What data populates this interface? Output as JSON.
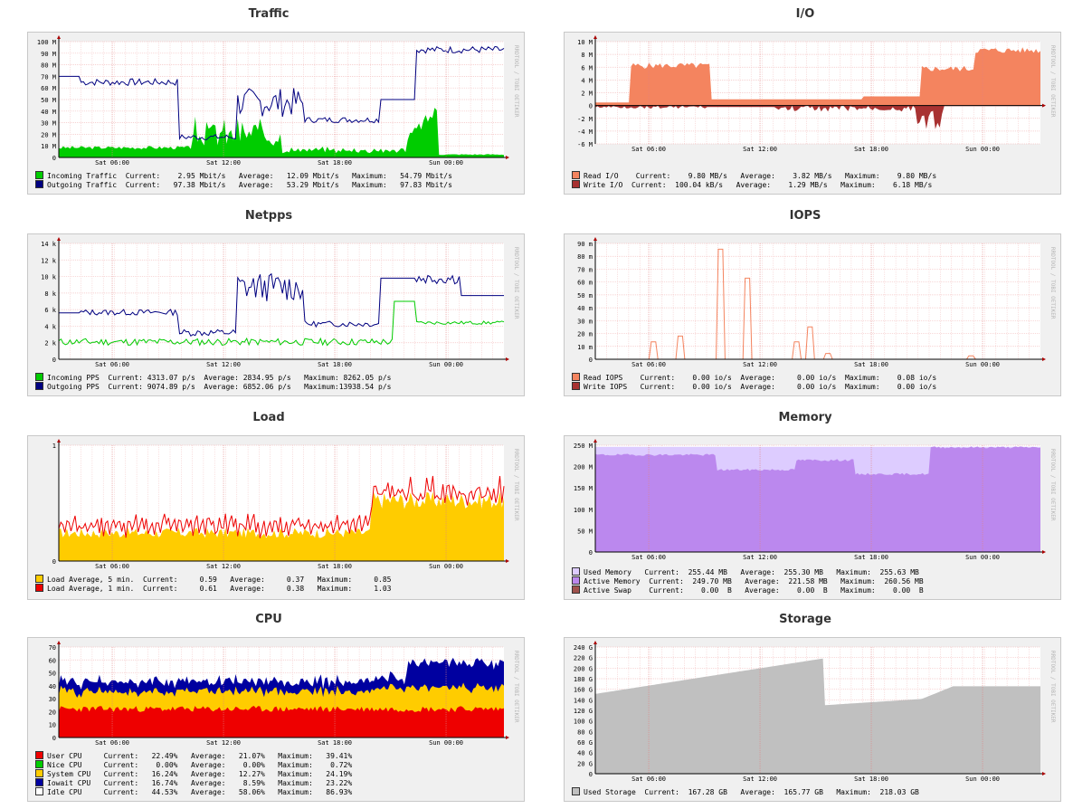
{
  "sidebar_label": "RRDTOOL / TOBI OETIKER",
  "x_ticks": [
    "Sat 06:00",
    "Sat 12:00",
    "Sat 18:00",
    "Sun 00:00"
  ],
  "charts": [
    {
      "id": "traffic",
      "title": "Traffic",
      "y_ticks": [
        "0",
        "10 M",
        "20 M",
        "30 M",
        "40 M",
        "50 M",
        "60 M",
        "70 M",
        "80 M",
        "90 M",
        "100 M"
      ],
      "legend": [
        {
          "color": "#00cc00",
          "text": "Incoming Traffic  Current:    2.95 Mbit/s   Average:   12.09 Mbit/s   Maximum:   54.79 Mbit/s"
        },
        {
          "color": "#000080",
          "text": "Outgoing Traffic  Current:   97.38 Mbit/s   Average:   53.29 Mbit/s   Maximum:   97.83 Mbit/s"
        }
      ]
    },
    {
      "id": "io",
      "title": "I/O",
      "y_ticks": [
        "-6 M",
        "-4 M",
        "-2 M",
        "0",
        "2 M",
        "4 M",
        "6 M",
        "8 M",
        "10 M"
      ],
      "legend": [
        {
          "color": "#f4845f",
          "text": "Read I/O    Current:    9.80 MB/s   Average:    3.82 MB/s   Maximum:    9.80 MB/s"
        },
        {
          "color": "#a83232",
          "text": "Write I/O  Current:  100.04 kB/s   Average:    1.29 MB/s   Maximum:    6.18 MB/s"
        }
      ]
    },
    {
      "id": "netpps",
      "title": "Netpps",
      "y_ticks": [
        "0",
        "2 k",
        "4 k",
        "6 k",
        "8 k",
        "10 k",
        "12 k",
        "14 k"
      ],
      "legend": [
        {
          "color": "#00cc00",
          "text": "Incoming PPS  Current: 4313.07 p/s  Average: 2834.95 p/s   Maximum: 8262.05 p/s"
        },
        {
          "color": "#000080",
          "text": "Outgoing PPS  Current: 9074.89 p/s  Average: 6852.06 p/s   Maximum:13938.54 p/s"
        }
      ]
    },
    {
      "id": "iops",
      "title": "IOPS",
      "y_ticks": [
        "0",
        "10 m",
        "20 m",
        "30 m",
        "40 m",
        "50 m",
        "60 m",
        "70 m",
        "80 m",
        "90 m"
      ],
      "legend": [
        {
          "color": "#f4845f",
          "text": "Read IOPS    Current:    0.00 io/s  Average:     0.00 io/s  Maximum:    0.08 io/s"
        },
        {
          "color": "#a83232",
          "text": "Write IOPS   Current:    0.00 io/s  Average:     0.00 io/s  Maximum:    0.00 io/s"
        }
      ]
    },
    {
      "id": "load",
      "title": "Load",
      "y_ticks": [
        "0",
        "1"
      ],
      "legend": [
        {
          "color": "#ffcc00",
          "text": "Load Average, 5 min.  Current:     0.59   Average:     0.37   Maximum:     0.85"
        },
        {
          "color": "#ee0000",
          "text": "Load Average, 1 min.  Current:     0.61   Average:     0.38   Maximum:     1.03"
        }
      ]
    },
    {
      "id": "memory",
      "title": "Memory",
      "y_ticks": [
        "0",
        "50 M",
        "100 M",
        "150 M",
        "200 M",
        "250 M"
      ],
      "legend": [
        {
          "color": "#ddccff",
          "text": "Used Memory   Current:  255.44 MB   Average:  255.30 MB   Maximum:  255.63 MB"
        },
        {
          "color": "#bb88ee",
          "text": "Active Memory  Current:  249.70 MB   Average:  221.58 MB   Maximum:  260.56 MB"
        },
        {
          "color": "#a0524d",
          "text": "Active Swap    Current:    0.00  B   Average:    0.00  B   Maximum:    0.00  B"
        }
      ]
    },
    {
      "id": "cpu",
      "title": "CPU",
      "y_ticks": [
        "0",
        "10",
        "20",
        "30",
        "40",
        "50",
        "60",
        "70"
      ],
      "legend": [
        {
          "color": "#ee0000",
          "text": "User CPU     Current:   22.49%   Average:   21.07%   Maximum:   39.41%"
        },
        {
          "color": "#00cc00",
          "text": "Nice CPU     Current:    0.00%   Average:    0.00%   Maximum:    0.72%"
        },
        {
          "color": "#ffcc00",
          "text": "System CPU   Current:   16.24%   Average:   12.27%   Maximum:   24.19%"
        },
        {
          "color": "#0000a0",
          "text": "Iowait CPU   Current:   16.74%   Average:    8.59%   Maximum:   23.22%"
        },
        {
          "color": "#ffffff",
          "text": "Idle CPU     Current:   44.53%   Average:   58.06%   Maximum:   86.93%"
        }
      ]
    },
    {
      "id": "storage",
      "title": "Storage",
      "y_ticks": [
        "0",
        "20 G",
        "40 G",
        "60 G",
        "80 G",
        "100 G",
        "120 G",
        "140 G",
        "160 G",
        "180 G",
        "200 G",
        "220 G",
        "240 G"
      ],
      "legend": [
        {
          "color": "#c0c0c0",
          "text": "Used Storage  Current:  167.28 GB   Average:  165.77 GB   Maximum:  218.03 GB"
        }
      ]
    }
  ]
}
